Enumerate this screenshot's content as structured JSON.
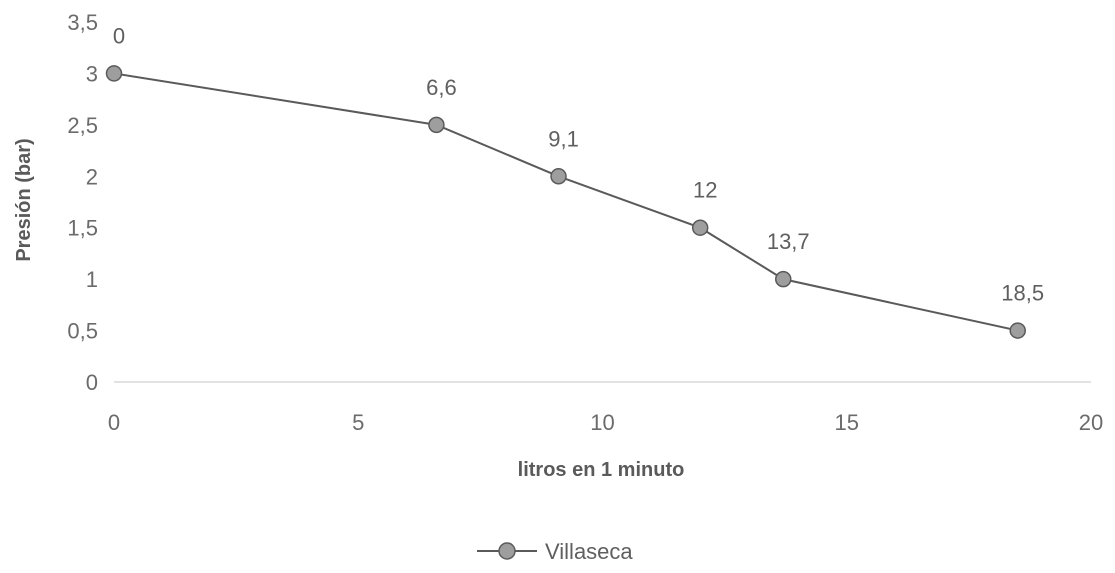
{
  "chart_data": {
    "type": "line",
    "title": "",
    "xlabel": "litros en 1 minuto",
    "ylabel": "Presión (bar)",
    "xlim": [
      0,
      20
    ],
    "ylim": [
      0,
      3.5
    ],
    "x_ticks": [
      0,
      5,
      10,
      15,
      20
    ],
    "y_ticks": [
      0,
      0.5,
      1,
      1.5,
      2,
      2.5,
      3,
      3.5
    ],
    "x_tick_labels": [
      "0",
      "5",
      "10",
      "15",
      "20"
    ],
    "y_tick_labels": [
      "0",
      "0,5",
      "1",
      "1,5",
      "2",
      "2,5",
      "3",
      "3,5"
    ],
    "grid": false,
    "legend_position": "bottom",
    "series": [
      {
        "name": "Villaseca",
        "color": "#5a5a5a",
        "marker_color": "#9e9e9e",
        "points": [
          {
            "x": 0,
            "y": 3.0,
            "label": "0"
          },
          {
            "x": 6.6,
            "y": 2.5,
            "label": "6,6"
          },
          {
            "x": 9.1,
            "y": 2.0,
            "label": "9,1"
          },
          {
            "x": 12,
            "y": 1.5,
            "label": "12"
          },
          {
            "x": 13.7,
            "y": 1.0,
            "label": "13,7"
          },
          {
            "x": 18.5,
            "y": 0.5,
            "label": "18,5"
          }
        ]
      }
    ]
  }
}
